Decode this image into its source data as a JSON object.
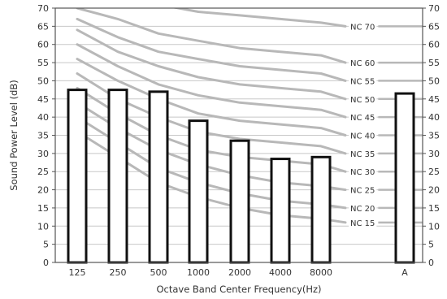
{
  "chart_data": {
    "type": "bar",
    "title": "",
    "xlabel": "Octave Band Center Frequency(Hz)",
    "ylabel": "Sound Power Level (dB)",
    "ylim": [
      0,
      70
    ],
    "y_ticks": [
      0,
      5,
      10,
      15,
      20,
      25,
      30,
      35,
      40,
      45,
      50,
      55,
      60,
      65,
      70
    ],
    "grid": true,
    "right_axis_labels": true,
    "categories": [
      "125",
      "250",
      "500",
      "1000",
      "2000",
      "4000",
      "8000",
      "A"
    ],
    "values": [
      47.5,
      47.5,
      47,
      39,
      33.5,
      28.5,
      29,
      46.5
    ],
    "bar_fill": "#ffffff",
    "bar_stroke": "#111111",
    "nc_curve_color": "#b8b8b8",
    "nc_curves": [
      {
        "name": "NC 15",
        "values": [
          36,
          29,
          22,
          18,
          15,
          13,
          12,
          11
        ]
      },
      {
        "name": "NC 20",
        "values": [
          40,
          33,
          26,
          22,
          19,
          17,
          16,
          15
        ]
      },
      {
        "name": "NC 25",
        "values": [
          44,
          37,
          31,
          27,
          24,
          22,
          21,
          20
        ]
      },
      {
        "name": "NC 30",
        "values": [
          48,
          41,
          35,
          31,
          29,
          28,
          27,
          25
        ]
      },
      {
        "name": "NC 35",
        "values": [
          52,
          45,
          40,
          36,
          34,
          33,
          32,
          30
        ]
      },
      {
        "name": "NC 40",
        "values": [
          56,
          50,
          45,
          41,
          39,
          38,
          37,
          35
        ]
      },
      {
        "name": "NC 45",
        "values": [
          60,
          54,
          49,
          46,
          44,
          43,
          42,
          40
        ]
      },
      {
        "name": "NC 50",
        "values": [
          64,
          58,
          54,
          51,
          49,
          48,
          47,
          45
        ]
      },
      {
        "name": "NC 55",
        "values": [
          67,
          62,
          58,
          56,
          54,
          53,
          52,
          50
        ]
      },
      {
        "name": "NC 60",
        "values": [
          70,
          67,
          63,
          61,
          59,
          58,
          57,
          55
        ]
      },
      {
        "name": "NC 70",
        "values": [
          77,
          75,
          71,
          69,
          68,
          67,
          66,
          65
        ]
      }
    ]
  }
}
